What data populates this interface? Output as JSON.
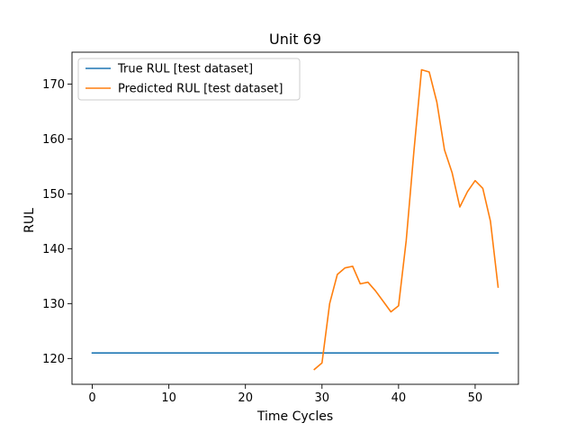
{
  "chart_data": {
    "type": "line",
    "title": "Unit 69",
    "xlabel": "Time Cycles",
    "ylabel": "RUL",
    "xlim": [
      -2.65,
      55.65
    ],
    "ylim": [
      115.3,
      175.8
    ],
    "xticks": [
      0,
      10,
      20,
      30,
      40,
      50
    ],
    "yticks": [
      120,
      130,
      140,
      150,
      160,
      170
    ],
    "grid": false,
    "legend_position": "upper-left",
    "series": [
      {
        "name": "True RUL [test dataset]",
        "color": "#1f77b4",
        "x": [
          0,
          53
        ],
        "y": [
          121,
          121
        ]
      },
      {
        "name": "Predicted RUL [test dataset]",
        "color": "#ff7f0e",
        "x": [
          29,
          30,
          31,
          32,
          33,
          34,
          35,
          36,
          37,
          38,
          39,
          40,
          41,
          42,
          43,
          44,
          45,
          46,
          47,
          48,
          49,
          50,
          51,
          52,
          53
        ],
        "y": [
          118.0,
          119.2,
          130.0,
          135.3,
          136.5,
          136.8,
          133.6,
          133.9,
          132.3,
          130.4,
          128.5,
          129.6,
          141.5,
          157.7,
          172.6,
          172.2,
          166.7,
          158.0,
          153.8,
          147.6,
          150.4,
          152.4,
          151.0,
          145.0,
          133.0
        ]
      }
    ]
  }
}
